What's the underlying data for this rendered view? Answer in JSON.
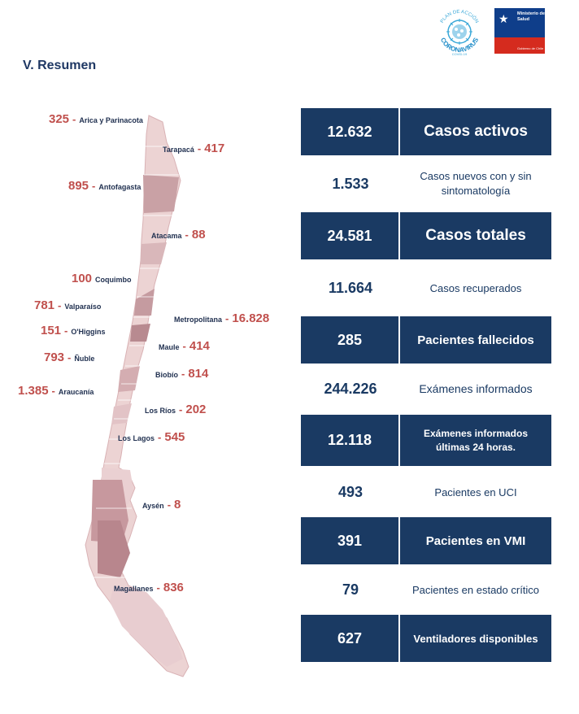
{
  "header": {
    "title": "V. Resumen",
    "logo_plan_top": "PLAN DE ACCIÓN",
    "logo_plan_main": "CORONAVIRUS",
    "logo_plan_sub": "COVID-19",
    "logo_minsal": "Ministerio de Salud",
    "logo_minsal_sub": "Gobierno de Chile"
  },
  "regions": [
    {
      "name": "Arica y Parinacota",
      "value": "325"
    },
    {
      "name": "Tarapacá",
      "value": "417"
    },
    {
      "name": "Antofagasta",
      "value": "895"
    },
    {
      "name": "Atacama",
      "value": "88"
    },
    {
      "name": "Coquimbo",
      "value": "100"
    },
    {
      "name": "Valparaíso",
      "value": "781"
    },
    {
      "name": "Metropolitana",
      "value": "16.828"
    },
    {
      "name": "O'Higgins",
      "value": "151"
    },
    {
      "name": "Maule",
      "value": "414"
    },
    {
      "name": "Ñuble",
      "value": "793"
    },
    {
      "name": "Biobío",
      "value": "814"
    },
    {
      "name": "Araucanía",
      "value": "1.385"
    },
    {
      "name": "Los Ríos",
      "value": "202"
    },
    {
      "name": "Los Lagos",
      "value": "545"
    },
    {
      "name": "Aysén",
      "value": "8"
    },
    {
      "name": "Magallanes",
      "value": "836"
    }
  ],
  "stats": [
    {
      "value": "12.632",
      "label": "Casos activos"
    },
    {
      "value": "1.533",
      "label": "Casos nuevos con y sin sintomatología"
    },
    {
      "value": "24.581",
      "label": "Casos totales"
    },
    {
      "value": "11.664",
      "label": "Casos recuperados"
    },
    {
      "value": "285",
      "label": "Pacientes fallecidos"
    },
    {
      "value": "244.226",
      "label": "Exámenes informados"
    },
    {
      "value": "12.118",
      "label": "Exámenes informados últimas 24 horas."
    },
    {
      "value": "493",
      "label": "Pacientes en UCI"
    },
    {
      "value": "391",
      "label": "Pacientes en VMI"
    },
    {
      "value": "79",
      "label": "Pacientes en estado crítico"
    },
    {
      "value": "627",
      "label": "Ventiladores disponibles"
    }
  ],
  "colors": {
    "navy": "#1a3a63",
    "region_value": "#c0504d",
    "map_light": "#ecd3d3",
    "map_dark": "#c9a1a5"
  }
}
